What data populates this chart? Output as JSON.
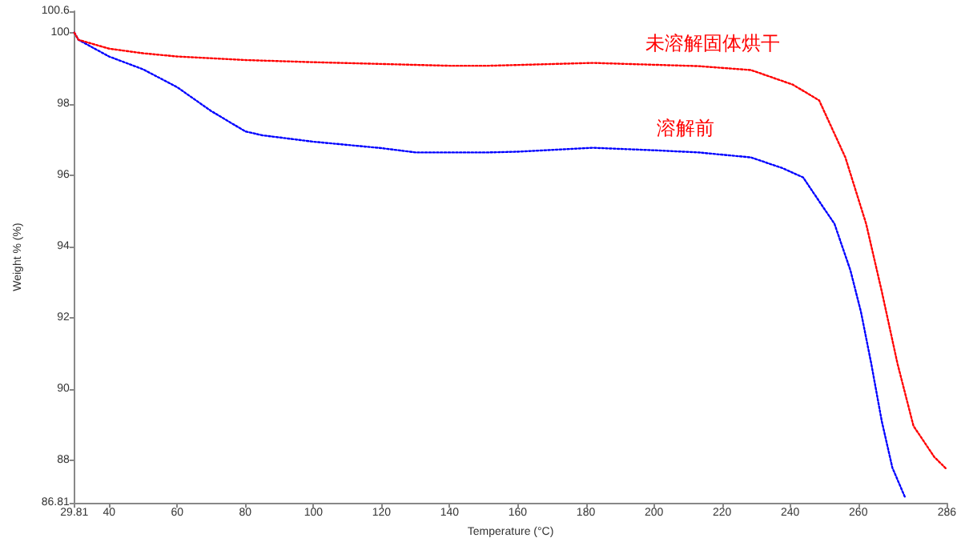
{
  "chart_data": {
    "type": "line",
    "xlabel": "Temperature (°C)",
    "ylabel": "Weight % (%)",
    "xlim": [
      29.81,
      286
    ],
    "xticks": [
      29.81,
      40,
      60,
      80,
      100,
      120,
      140,
      160,
      180,
      200,
      220,
      240,
      260,
      286
    ],
    "ylim": [
      86.81,
      100.6
    ],
    "yticks": [
      86.81,
      88,
      90,
      92,
      94,
      96,
      98,
      100,
      100.6
    ],
    "grid": false,
    "marker": "none",
    "line_style": "dotted",
    "annotations": [
      "未溶解固体烘干",
      "溶解前"
    ],
    "series": [
      {
        "color": "#0000ff",
        "x": [
          29.81,
          31,
          40,
          50,
          60,
          70,
          80,
          85,
          100,
          120,
          130,
          151.5,
          160,
          182,
          200,
          213,
          228.5,
          237.7,
          243.8,
          250,
          253,
          257.7,
          260.8,
          263.8,
          266.9,
          270,
          273.8
        ],
        "values": [
          100,
          99.8,
          99.33,
          98.97,
          98.47,
          97.8,
          97.23,
          97.12,
          96.94,
          96.76,
          96.64,
          96.64,
          96.66,
          96.77,
          96.7,
          96.64,
          96.5,
          96.2,
          95.94,
          95.06,
          94.64,
          93.33,
          92.16,
          90.72,
          89.1,
          87.8,
          86.95
        ]
      },
      {
        "color": "#ff0000",
        "x": [
          29.81,
          31,
          40,
          50,
          60,
          80,
          100,
          120,
          140,
          151.5,
          182,
          213,
          228.5,
          240.8,
          248.5,
          256.2,
          262.3,
          266.9,
          271.5,
          276.2,
          282.3,
          286
        ],
        "values": [
          100,
          99.8,
          99.55,
          99.42,
          99.33,
          99.23,
          99.17,
          99.12,
          99.07,
          99.07,
          99.15,
          99.06,
          98.95,
          98.54,
          98.1,
          96.5,
          94.64,
          92.74,
          90.72,
          88.97,
          88.1,
          87.75
        ]
      }
    ]
  }
}
